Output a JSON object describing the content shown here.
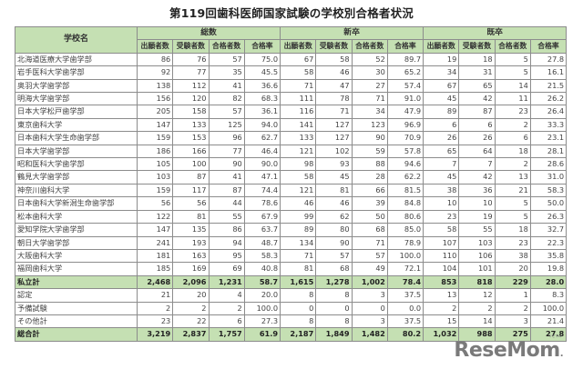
{
  "title": "第119回歯科医師国家試験の学校別合格者状況",
  "table": {
    "school_header": "学校名",
    "groups": [
      "総数",
      "新卒",
      "既卒"
    ],
    "subheaders": [
      "出願者数",
      "受験者数",
      "合格者数",
      "合格率"
    ],
    "rows": [
      {
        "name": "北海道医療大学歯学部",
        "v": [
          "86",
          "76",
          "57",
          "75.0",
          "67",
          "58",
          "52",
          "89.7",
          "19",
          "18",
          "5",
          "27.8"
        ]
      },
      {
        "name": "岩手医科大学歯学部",
        "v": [
          "92",
          "77",
          "35",
          "45.5",
          "58",
          "46",
          "30",
          "65.2",
          "34",
          "31",
          "5",
          "16.1"
        ]
      },
      {
        "name": "奥羽大学歯学部",
        "v": [
          "138",
          "112",
          "41",
          "36.6",
          "71",
          "47",
          "27",
          "57.4",
          "67",
          "65",
          "14",
          "21.5"
        ]
      },
      {
        "name": "明海大学歯学部",
        "v": [
          "156",
          "120",
          "82",
          "68.3",
          "111",
          "78",
          "71",
          "91.0",
          "45",
          "42",
          "11",
          "26.2"
        ]
      },
      {
        "name": "日本大学松戸歯学部",
        "v": [
          "205",
          "158",
          "57",
          "36.1",
          "116",
          "71",
          "34",
          "47.9",
          "89",
          "87",
          "23",
          "26.4"
        ]
      },
      {
        "name": "東京歯科大学",
        "v": [
          "147",
          "133",
          "125",
          "94.0",
          "141",
          "127",
          "123",
          "96.9",
          "6",
          "6",
          "2",
          "33.3"
        ]
      },
      {
        "name": "日本歯科大学生命歯学部",
        "v": [
          "159",
          "153",
          "96",
          "62.7",
          "133",
          "127",
          "90",
          "70.9",
          "26",
          "26",
          "6",
          "23.1"
        ]
      },
      {
        "name": "日本大学歯学部",
        "v": [
          "186",
          "166",
          "77",
          "46.4",
          "121",
          "102",
          "59",
          "57.8",
          "65",
          "64",
          "18",
          "28.1"
        ]
      },
      {
        "name": "昭和医科大学歯学部",
        "v": [
          "105",
          "100",
          "90",
          "90.0",
          "98",
          "93",
          "88",
          "94.6",
          "7",
          "7",
          "2",
          "28.6"
        ]
      },
      {
        "name": "鶴見大学歯学部",
        "v": [
          "103",
          "87",
          "41",
          "47.1",
          "58",
          "45",
          "28",
          "62.2",
          "45",
          "42",
          "13",
          "31.0"
        ]
      },
      {
        "name": "神奈川歯科大学",
        "v": [
          "159",
          "117",
          "87",
          "74.4",
          "121",
          "81",
          "66",
          "81.5",
          "38",
          "36",
          "21",
          "58.3"
        ]
      },
      {
        "name": "日本歯科大学新潟生命歯学部",
        "v": [
          "56",
          "56",
          "44",
          "78.6",
          "46",
          "46",
          "39",
          "84.8",
          "10",
          "10",
          "5",
          "50.0"
        ]
      },
      {
        "name": "松本歯科大学",
        "v": [
          "122",
          "81",
          "55",
          "67.9",
          "99",
          "62",
          "50",
          "80.6",
          "23",
          "19",
          "5",
          "26.3"
        ]
      },
      {
        "name": "愛知学院大学歯学部",
        "v": [
          "147",
          "135",
          "86",
          "63.7",
          "89",
          "80",
          "68",
          "85.0",
          "58",
          "55",
          "18",
          "32.7"
        ]
      },
      {
        "name": "朝日大学歯学部",
        "v": [
          "241",
          "193",
          "94",
          "48.7",
          "134",
          "90",
          "71",
          "78.9",
          "107",
          "103",
          "23",
          "22.3"
        ]
      },
      {
        "name": "大阪歯科大学",
        "v": [
          "181",
          "163",
          "95",
          "58.3",
          "71",
          "57",
          "57",
          "100.0",
          "110",
          "106",
          "38",
          "35.8"
        ]
      },
      {
        "name": "福岡歯科大学",
        "v": [
          "185",
          "169",
          "69",
          "40.8",
          "81",
          "68",
          "49",
          "72.1",
          "104",
          "101",
          "20",
          "19.8"
        ]
      },
      {
        "name": "私立計",
        "subtotal": true,
        "v": [
          "2,468",
          "2,096",
          "1,231",
          "58.7",
          "1,615",
          "1,278",
          "1,002",
          "78.4",
          "853",
          "818",
          "229",
          "28.0"
        ]
      },
      {
        "name": "認定",
        "v": [
          "21",
          "20",
          "4",
          "20.0",
          "8",
          "8",
          "3",
          "37.5",
          "13",
          "12",
          "1",
          "8.3"
        ]
      },
      {
        "name": "予備試験",
        "v": [
          "2",
          "2",
          "2",
          "100.0",
          "0",
          "0",
          "0",
          "0.0",
          "2",
          "2",
          "2",
          "100.0"
        ]
      },
      {
        "name": "その他計",
        "v": [
          "23",
          "22",
          "6",
          "27.3",
          "8",
          "8",
          "3",
          "37.5",
          "15",
          "14",
          "3",
          "21.4"
        ]
      },
      {
        "name": "総合計",
        "subtotal": true,
        "v": [
          "3,219",
          "2,837",
          "1,757",
          "61.9",
          "2,187",
          "1,849",
          "1,482",
          "80.2",
          "1,032",
          "988",
          "275",
          "27.8"
        ]
      }
    ]
  },
  "watermark": {
    "text": "ReseMom",
    "suffix": ".",
    "kana": "リセマム"
  },
  "colors": {
    "header_bg": "#c5e0b3",
    "border": "#8c8c8c"
  }
}
